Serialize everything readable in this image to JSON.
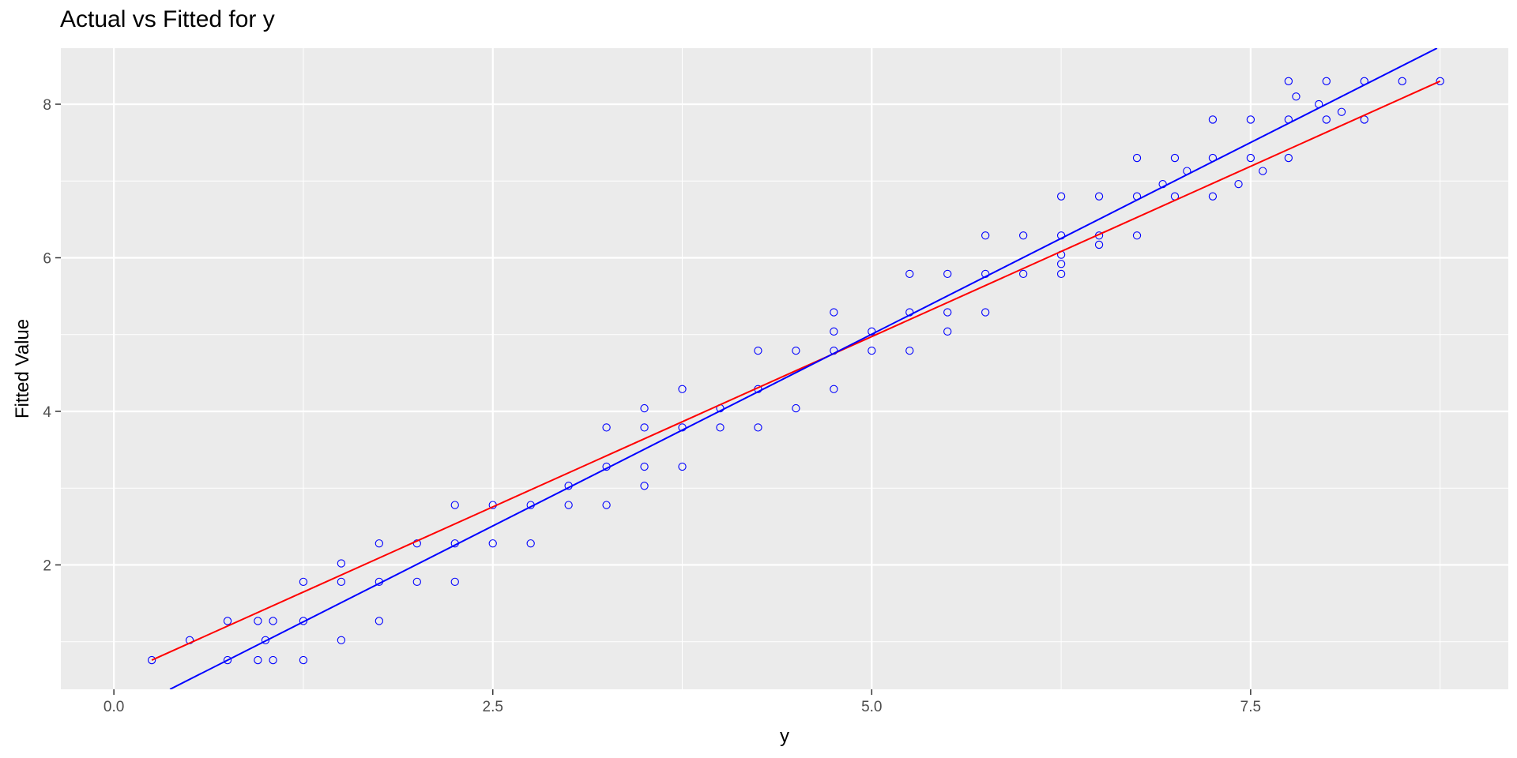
{
  "chart_data": {
    "type": "scatter",
    "title": "Actual vs Fitted for y",
    "xlabel": "y",
    "ylabel": "Fitted Value",
    "xlim": [
      -0.35,
      9.2
    ],
    "ylim": [
      0.38,
      8.73
    ],
    "x_ticks": [
      0,
      2.5,
      5,
      7.5
    ],
    "x_tick_labels": [
      "0.0",
      "2.5",
      "5.0",
      "7.5"
    ],
    "y_ticks": [
      2,
      4,
      6,
      8
    ],
    "y_tick_labels": [
      "2",
      "4",
      "6",
      "8"
    ],
    "grid": true,
    "legend": "none",
    "colors": {
      "points": "#0000ff",
      "fit_line": "#ff0000",
      "identity_line": "#0000ff",
      "panel": "#ebebeb",
      "grid": "#ffffff",
      "tick_text": "#4d4d4d"
    },
    "series": [
      {
        "type": "scatter",
        "points": [
          [
            0.25,
            0.76
          ],
          [
            0.5,
            1.02
          ],
          [
            0.75,
            1.27
          ],
          [
            0.75,
            0.76
          ],
          [
            0.95,
            1.27
          ],
          [
            0.95,
            0.76
          ],
          [
            1.0,
            1.02
          ],
          [
            1.05,
            1.27
          ],
          [
            1.05,
            0.76
          ],
          [
            1.25,
            1.78
          ],
          [
            1.25,
            1.27
          ],
          [
            1.25,
            0.76
          ],
          [
            1.5,
            2.02
          ],
          [
            1.5,
            1.78
          ],
          [
            1.5,
            1.02
          ],
          [
            1.75,
            2.28
          ],
          [
            1.75,
            1.78
          ],
          [
            1.75,
            1.27
          ],
          [
            2.0,
            2.28
          ],
          [
            2.0,
            1.78
          ],
          [
            2.25,
            2.78
          ],
          [
            2.25,
            2.28
          ],
          [
            2.25,
            1.78
          ],
          [
            2.5,
            2.78
          ],
          [
            2.5,
            2.28
          ],
          [
            2.75,
            2.78
          ],
          [
            2.75,
            2.28
          ],
          [
            3.0,
            3.03
          ],
          [
            3.0,
            2.78
          ],
          [
            3.25,
            3.79
          ],
          [
            3.25,
            3.28
          ],
          [
            3.25,
            2.78
          ],
          [
            3.5,
            4.04
          ],
          [
            3.5,
            3.79
          ],
          [
            3.5,
            3.28
          ],
          [
            3.5,
            3.03
          ],
          [
            3.75,
            4.29
          ],
          [
            3.75,
            3.79
          ],
          [
            3.75,
            3.28
          ],
          [
            4.0,
            4.04
          ],
          [
            4.0,
            3.79
          ],
          [
            4.25,
            4.79
          ],
          [
            4.25,
            4.29
          ],
          [
            4.25,
            3.79
          ],
          [
            4.5,
            4.79
          ],
          [
            4.5,
            4.04
          ],
          [
            4.75,
            5.29
          ],
          [
            4.75,
            5.04
          ],
          [
            4.75,
            4.79
          ],
          [
            4.75,
            4.29
          ],
          [
            5.0,
            5.04
          ],
          [
            5.0,
            4.79
          ],
          [
            5.25,
            5.79
          ],
          [
            5.25,
            5.29
          ],
          [
            5.25,
            4.79
          ],
          [
            5.5,
            5.79
          ],
          [
            5.5,
            5.29
          ],
          [
            5.5,
            5.04
          ],
          [
            5.75,
            6.29
          ],
          [
            5.75,
            5.79
          ],
          [
            5.75,
            5.29
          ],
          [
            6.0,
            6.29
          ],
          [
            6.0,
            5.79
          ],
          [
            6.25,
            6.8
          ],
          [
            6.25,
            6.29
          ],
          [
            6.25,
            6.04
          ],
          [
            6.25,
            5.92
          ],
          [
            6.25,
            5.79
          ],
          [
            6.5,
            6.8
          ],
          [
            6.5,
            6.29
          ],
          [
            6.5,
            6.17
          ],
          [
            6.75,
            7.3
          ],
          [
            6.75,
            6.8
          ],
          [
            6.75,
            6.29
          ],
          [
            6.92,
            6.96
          ],
          [
            7.0,
            7.3
          ],
          [
            7.0,
            6.8
          ],
          [
            7.08,
            7.13
          ],
          [
            7.25,
            7.8
          ],
          [
            7.25,
            7.3
          ],
          [
            7.25,
            6.8
          ],
          [
            7.42,
            6.96
          ],
          [
            7.5,
            7.8
          ],
          [
            7.5,
            7.3
          ],
          [
            7.58,
            7.13
          ],
          [
            7.75,
            8.3
          ],
          [
            7.75,
            7.8
          ],
          [
            7.75,
            7.3
          ],
          [
            7.8,
            8.1
          ],
          [
            7.95,
            8.0
          ],
          [
            8.0,
            8.3
          ],
          [
            8.0,
            7.8
          ],
          [
            8.1,
            7.9
          ],
          [
            8.25,
            8.3
          ],
          [
            8.25,
            7.8
          ],
          [
            8.5,
            8.3
          ],
          [
            8.75,
            8.3
          ]
        ]
      },
      {
        "type": "line",
        "role": "fitted regression",
        "color": "#ff0000",
        "points": [
          [
            0.25,
            0.76
          ],
          [
            8.75,
            8.3
          ]
        ]
      },
      {
        "type": "line",
        "role": "identity y = x",
        "color": "#0000ff",
        "points": [
          [
            0.37,
            0.38
          ],
          [
            8.73,
            8.73
          ]
        ]
      }
    ]
  }
}
